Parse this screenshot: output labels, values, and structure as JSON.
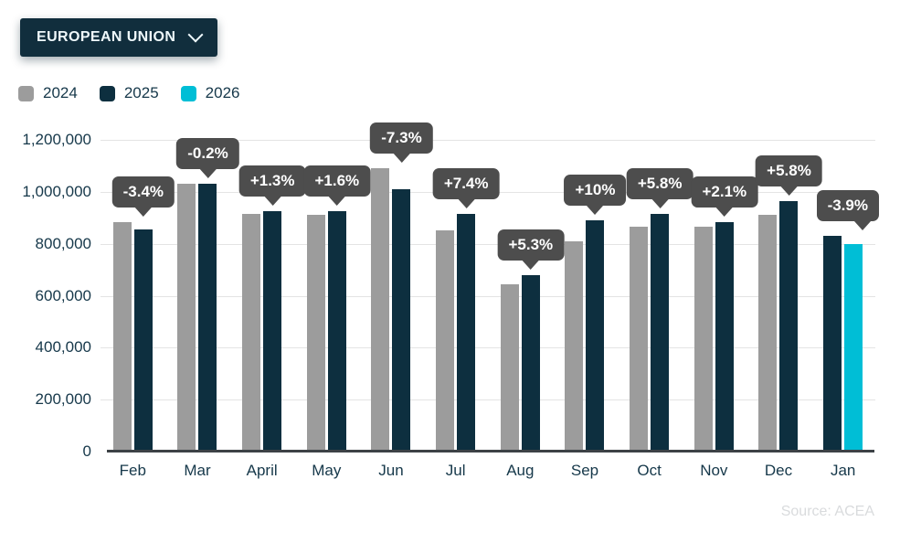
{
  "dropdown": {
    "label": "EUROPEAN UNION",
    "icon": "chevron-down"
  },
  "legend": {
    "items": [
      {
        "label": "2024",
        "color": "#9c9c9c"
      },
      {
        "label": "2025",
        "color": "#0d2f3f"
      },
      {
        "label": "2026",
        "color": "#00bed6"
      }
    ]
  },
  "source": {
    "text": "Source:  ACEA"
  },
  "chart_data": {
    "type": "bar",
    "title": "",
    "categories": [
      "Feb",
      "Mar",
      "April",
      "May",
      "Jun",
      "Jul",
      "Aug",
      "Sep",
      "Oct",
      "Nov",
      "Dec",
      "Jan"
    ],
    "series": [
      "2024",
      "2025",
      "2026"
    ],
    "series_colors": {
      "2024": "#9c9c9c",
      "2025": "#0d2f3f",
      "2026": "#00bed6"
    },
    "delta_badge_color": "#4d4d4d",
    "y_axis": {
      "min": 0,
      "max": 1200000,
      "tick_step": 200000,
      "tick_labels": [
        "0",
        "200,000",
        "400,000",
        "600,000",
        "800,000",
        "1,000,000",
        "1,200,000"
      ]
    },
    "legend_position": "top-left",
    "grid": true,
    "groups": [
      {
        "month": "Feb",
        "delta": "-3.4%",
        "bars": [
          {
            "series": "2024",
            "value": 884000
          },
          {
            "series": "2025",
            "value": 854000
          }
        ]
      },
      {
        "month": "Mar",
        "delta": "-0.2%",
        "bars": [
          {
            "series": "2024",
            "value": 1032000
          },
          {
            "series": "2025",
            "value": 1030000
          }
        ]
      },
      {
        "month": "April",
        "delta": "+1.3%",
        "bars": [
          {
            "series": "2024",
            "value": 914000
          },
          {
            "series": "2025",
            "value": 926000
          }
        ]
      },
      {
        "month": "May",
        "delta": "+1.6%",
        "bars": [
          {
            "series": "2024",
            "value": 912000
          },
          {
            "series": "2025",
            "value": 927000
          }
        ]
      },
      {
        "month": "Jun",
        "delta": "-7.3%",
        "bars": [
          {
            "series": "2024",
            "value": 1090000
          },
          {
            "series": "2025",
            "value": 1011000
          }
        ]
      },
      {
        "month": "Jul",
        "delta": "+7.4%",
        "bars": [
          {
            "series": "2024",
            "value": 852000
          },
          {
            "series": "2025",
            "value": 915000
          }
        ]
      },
      {
        "month": "Aug",
        "delta": "+5.3%",
        "bars": [
          {
            "series": "2024",
            "value": 644000
          },
          {
            "series": "2025",
            "value": 678000
          }
        ]
      },
      {
        "month": "Sep",
        "delta": "+10%",
        "bars": [
          {
            "series": "2024",
            "value": 809000
          },
          {
            "series": "2025",
            "value": 890000
          }
        ]
      },
      {
        "month": "Oct",
        "delta": "+5.8%",
        "bars": [
          {
            "series": "2024",
            "value": 866000
          },
          {
            "series": "2025",
            "value": 916000
          }
        ]
      },
      {
        "month": "Nov",
        "delta": "+2.1%",
        "bars": [
          {
            "series": "2024",
            "value": 866000
          },
          {
            "series": "2025",
            "value": 884000
          }
        ]
      },
      {
        "month": "Dec",
        "delta": "+5.8%",
        "bars": [
          {
            "series": "2024",
            "value": 911000
          },
          {
            "series": "2025",
            "value": 964000
          }
        ]
      },
      {
        "month": "Jan",
        "delta": "-3.9%",
        "bars": [
          {
            "series": "2025",
            "value": 831000
          },
          {
            "series": "2026",
            "value": 799000
          }
        ]
      }
    ]
  }
}
